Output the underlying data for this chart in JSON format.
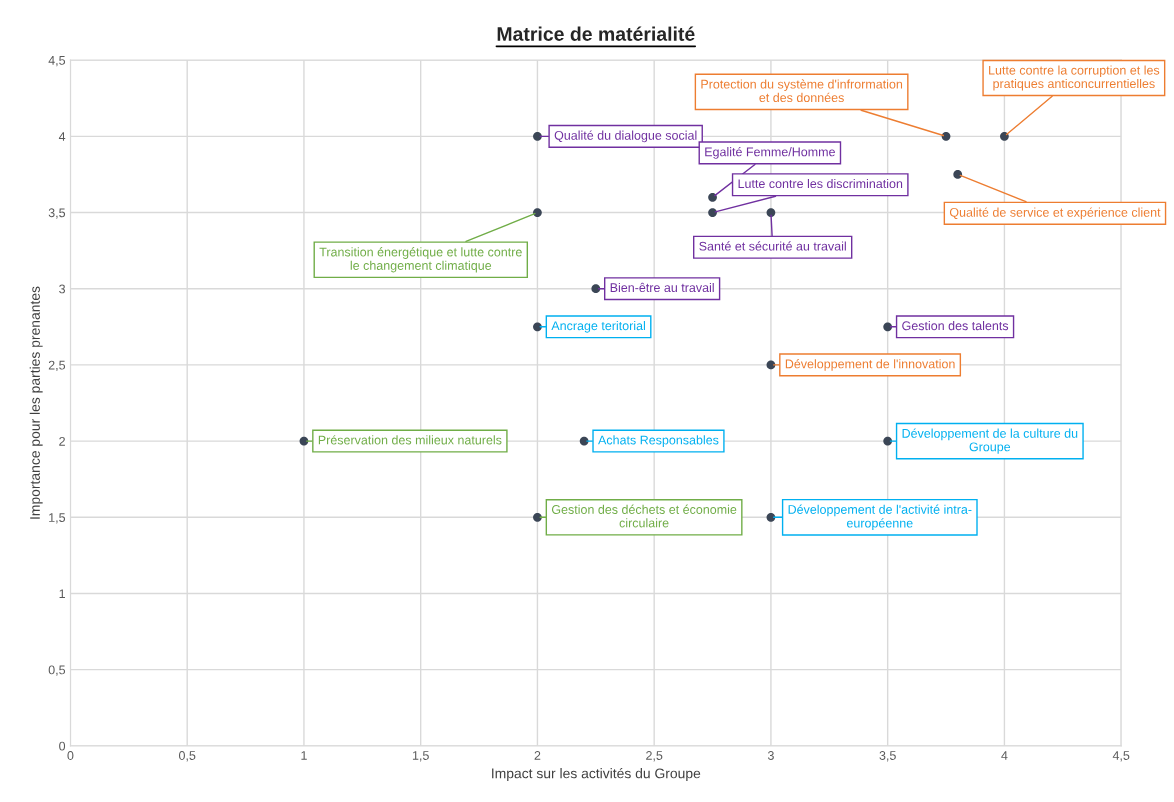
{
  "chart_data": {
    "type": "scatter",
    "title": "Matrice de matérialité",
    "xlabel": "Impact sur les activités du Groupe",
    "ylabel": "Importance pour les parties prenantes",
    "xlim": [
      0,
      4.5
    ],
    "ylim": [
      0,
      4.5
    ],
    "xticks": [
      0,
      {
        "value": 0.5,
        "label": "0,5"
      },
      1,
      {
        "value": 1.5,
        "label": "1,5"
      },
      2,
      {
        "value": 2.5,
        "label": "2,5"
      },
      3,
      {
        "value": 3.5,
        "label": "3,5"
      },
      4,
      {
        "value": 4.5,
        "label": "4,5"
      }
    ],
    "yticks": [
      0,
      {
        "value": 0.5,
        "label": "0,5"
      },
      1,
      {
        "value": 1.5,
        "label": "1,5"
      },
      2,
      {
        "value": 2.5,
        "label": "2,5"
      },
      3,
      {
        "value": 3.5,
        "label": "3,5"
      },
      4,
      {
        "value": 4.5,
        "label": "4,5"
      }
    ],
    "grid": true,
    "marker": "circle",
    "series": [
      {
        "color": "#3b4656",
        "x": [
          2,
          2.75,
          2.75,
          3,
          2.25,
          3.5
        ],
        "values": [
          4,
          3.6,
          3.5,
          3.5,
          3,
          2.75
        ],
        "value_labels": [
          "Qualité du dialogue social",
          "Egalité Femme/Homme",
          "Lutte contre les discrimination",
          "Santé et sécurité au travail",
          "Bien-être au travail",
          "Gestion des talents"
        ]
      },
      {
        "color": "#3b4656",
        "x": [
          3.75,
          4,
          3.8,
          3
        ],
        "values": [
          4,
          4,
          3.75,
          2.5
        ],
        "value_labels": [
          "Protection du système d'infrormation\net des données",
          "Lutte contre la corruption et les\npratiques anticoncurrentielles",
          "Qualité de service et expérience client",
          "Développement de l'innovation"
        ]
      },
      {
        "color": "#3b4656",
        "x": [
          2,
          1,
          2
        ],
        "values": [
          3.5,
          2,
          1.5
        ],
        "value_labels": [
          "Transition énergétique et lutte contre\nle changement climatique",
          "Préservation des milieux naturels",
          "Gestion des déchets et économie\ncirculaire"
        ]
      },
      {
        "color": "#3b4656",
        "x": [
          2,
          2.2,
          3.5,
          3
        ],
        "values": [
          2.75,
          2,
          2,
          1.5
        ],
        "value_labels": [
          "Ancrage teritorial",
          "Achats Responsables",
          "Développement de la culture du\nGroupe",
          "Développement de l'activité intra-\neuropéenne"
        ]
      }
    ]
  }
}
